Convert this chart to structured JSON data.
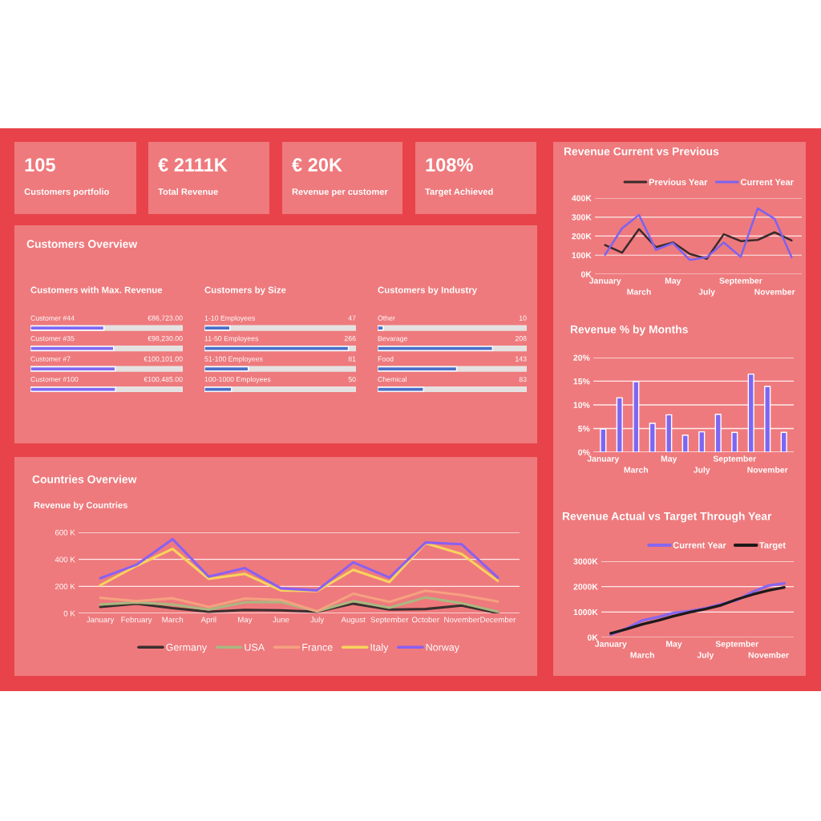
{
  "chart_data": [
    {
      "type": "other",
      "title": "105",
      "subtitle": "Customers portfolio"
    },
    {
      "type": "other",
      "title": "€ 2111K",
      "subtitle": "Total Revenue"
    },
    {
      "type": "other",
      "title": "€ 20K",
      "subtitle": "Revenue per customer"
    },
    {
      "type": "other",
      "title": "108%",
      "subtitle": "Target Achieved"
    },
    {
      "type": "other",
      "title": "Customers Overview"
    },
    {
      "type": "bar",
      "orientation": "horizontal",
      "title": "Customers with Max. Revenue",
      "categories": [
        "Customer #44",
        "Customer #35",
        "Customer #7",
        "Customer #100"
      ],
      "values": [
        86723,
        98230,
        100101,
        100485
      ],
      "value_labels": [
        "€86,723.00",
        "€98,230.00",
        "€100,101.00",
        "€100,485.00"
      ],
      "color": "#8068f2",
      "xlim": [
        0,
        180000
      ]
    },
    {
      "type": "bar",
      "orientation": "horizontal",
      "title": "Customers by Size",
      "categories": [
        "1-10 Employees",
        "11-50 Employees",
        "51-100 Employees",
        "100-1000 Employees"
      ],
      "values": [
        47,
        266,
        81,
        50
      ],
      "data_labels": true,
      "color": "#4a6fc8",
      "xlim": [
        0,
        280
      ]
    },
    {
      "type": "bar",
      "orientation": "horizontal",
      "title": "Customers by Industry",
      "categories": [
        "Other",
        "Bevarage",
        "Food",
        "Chemical"
      ],
      "values": [
        10,
        208,
        143,
        83
      ],
      "data_labels": true,
      "color": "#4a6fc8",
      "xlim": [
        0,
        270
      ]
    },
    {
      "type": "line",
      "title": "Countries Overview",
      "subtitle": "Revenue by Countries",
      "categories": [
        "January",
        "February",
        "March",
        "April",
        "May",
        "June",
        "July",
        "August",
        "September",
        "October",
        "November",
        "December"
      ],
      "ylim": [
        0,
        600
      ],
      "yticks": [
        {
          "value": 0,
          "label": "0 K"
        },
        {
          "value": 200,
          "label": "200 K"
        },
        {
          "value": 400,
          "label": "400 K"
        },
        {
          "value": 600,
          "label": "600 K"
        }
      ],
      "grid": "y",
      "legend": "bottom",
      "series": [
        {
          "name": "Germany",
          "color": "#3b2f2f",
          "values": [
            48,
            72,
            38,
            12,
            25,
            22,
            12,
            72,
            28,
            32,
            58,
            2
          ]
        },
        {
          "name": "USA",
          "color": "#a8b880",
          "values": [
            65,
            80,
            65,
            28,
            82,
            85,
            15,
            90,
            42,
            118,
            75,
            12
          ]
        },
        {
          "name": "France",
          "color": "#f5a180",
          "values": [
            115,
            90,
            112,
            48,
            110,
            100,
            15,
            145,
            85,
            168,
            135,
            88
          ]
        },
        {
          "name": "Italy",
          "color": "#f8d35e",
          "values": [
            208,
            352,
            478,
            255,
            292,
            170,
            165,
            322,
            232,
            520,
            440,
            240
          ]
        },
        {
          "name": "Norway",
          "color": "#8a60f2",
          "values": [
            260,
            360,
            550,
            272,
            335,
            185,
            170,
            378,
            265,
            525,
            512,
            265
          ]
        }
      ]
    },
    {
      "type": "line",
      "title": "Revenue Current vs Previous",
      "categories": [
        "January",
        null,
        "March",
        null,
        "May",
        null,
        "July",
        null,
        "September",
        null,
        "November",
        null
      ],
      "ylim": [
        0,
        400
      ],
      "yticks": [
        {
          "value": 0,
          "label": "0K"
        },
        {
          "value": 100,
          "label": "100K"
        },
        {
          "value": 200,
          "label": "200K"
        },
        {
          "value": 300,
          "label": "300K"
        },
        {
          "value": 400,
          "label": "400K"
        }
      ],
      "grid": "y",
      "legend": "top",
      "series": [
        {
          "name": "Previous Year",
          "color": "#3a2a2c",
          "values": [
            153,
            113,
            237,
            142,
            167,
            106,
            81,
            210,
            174,
            180,
            220,
            177
          ]
        },
        {
          "name": "Current Year",
          "color": "#7d62f0",
          "values": [
            102,
            241,
            311,
            128,
            163,
            75,
            89,
            166,
            91,
            346,
            291,
            89
          ]
        }
      ]
    },
    {
      "type": "bar",
      "title": "Revenue % by Months",
      "categories": [
        "January",
        null,
        "March",
        null,
        "May",
        null,
        "July",
        null,
        "September",
        null,
        "November",
        null
      ],
      "values": [
        4.9,
        11.5,
        14.9,
        6.1,
        7.9,
        3.6,
        4.3,
        8.0,
        4.2,
        16.5,
        13.9,
        4.2
      ],
      "color": "#7d66f2",
      "ylim": [
        0,
        20
      ],
      "yticks": [
        {
          "value": 0,
          "label": "0%"
        },
        {
          "value": 5,
          "label": "5%"
        },
        {
          "value": 10,
          "label": "10%"
        },
        {
          "value": 15,
          "label": "15%"
        },
        {
          "value": 20,
          "label": "20%"
        }
      ],
      "grid": "y"
    },
    {
      "type": "line",
      "title": "Revenue Actual vs Target Through Year",
      "categories": [
        "January",
        null,
        "March",
        null,
        "May",
        null,
        "July",
        null,
        "September",
        null,
        "November",
        null
      ],
      "ylim": [
        0,
        3000
      ],
      "yticks": [
        {
          "value": 0,
          "label": "0K"
        },
        {
          "value": 1000,
          "label": "1000K"
        },
        {
          "value": 2000,
          "label": "2000K"
        },
        {
          "value": 3000,
          "label": "3000K"
        }
      ],
      "grid": "y",
      "legend": "top",
      "series": [
        {
          "name": "Current Year",
          "color": "#8866ee",
          "values": [
            110,
            350,
            670,
            800,
            970,
            1040,
            1150,
            1310,
            1470,
            1790,
            2040,
            2130
          ]
        },
        {
          "name": "Target",
          "color": "#1e1a1a",
          "values": [
            160,
            330,
            520,
            670,
            840,
            990,
            1120,
            1270,
            1500,
            1690,
            1850,
            1970
          ]
        }
      ]
    }
  ]
}
